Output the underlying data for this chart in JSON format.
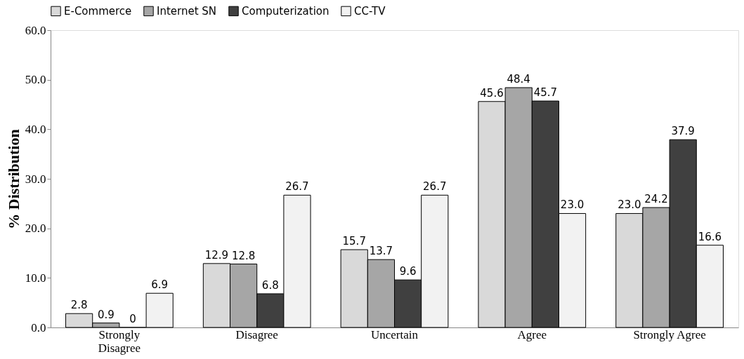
{
  "chart_data": {
    "type": "bar",
    "ylabel": "% Distribution",
    "categories": [
      "Strongly Disagree",
      "Disagree",
      "Uncertain",
      "Agree",
      "Strongly Agree"
    ],
    "series": [
      {
        "name": "E-Commerce",
        "color": "#d9d9d9",
        "values": [
          2.8,
          12.9,
          15.7,
          45.6,
          23.0
        ],
        "value_labels": [
          "2.8",
          "12.9",
          "15.7",
          "45.6",
          "23.0"
        ]
      },
      {
        "name": "Internet SN",
        "color": "#a6a6a6",
        "values": [
          0.9,
          12.8,
          13.7,
          48.4,
          24.2
        ],
        "value_labels": [
          "0.9",
          "12.8",
          "13.7",
          "48.4",
          "24.2"
        ]
      },
      {
        "name": "Computerization",
        "color": "#404040",
        "values": [
          0,
          6.8,
          9.6,
          45.7,
          37.9
        ],
        "value_labels": [
          "0",
          "6.8",
          "9.6",
          "45.7",
          "37.9"
        ]
      },
      {
        "name": "CC-TV",
        "color": "#f2f2f2",
        "values": [
          6.9,
          26.7,
          26.7,
          23.0,
          16.6
        ],
        "value_labels": [
          "6.9",
          "26.7",
          "26.7",
          "23.0",
          "16.6"
        ]
      }
    ],
    "ylim": [
      0,
      60
    ],
    "yticks": [
      {
        "value": 0,
        "label": "0.0"
      },
      {
        "value": 10,
        "label": "10.0"
      },
      {
        "value": 20,
        "label": "20.0"
      },
      {
        "value": 30,
        "label": "30.0"
      },
      {
        "value": 40,
        "label": "40.0"
      },
      {
        "value": 50,
        "label": "50.0"
      },
      {
        "value": 60,
        "label": "60.0"
      }
    ],
    "grid": false,
    "legend": "top"
  }
}
